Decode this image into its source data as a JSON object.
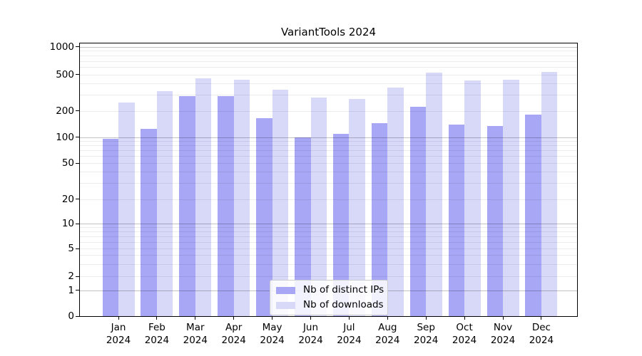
{
  "title": "VariantTools 2024",
  "chart_data": {
    "type": "bar",
    "title": "VariantTools 2024",
    "categories": [
      "Jan 2024",
      "Feb 2024",
      "Mar 2024",
      "Apr 2024",
      "May 2024",
      "Jun 2024",
      "Jul 2024",
      "Aug 2024",
      "Sep 2024",
      "Oct 2024",
      "Nov 2024",
      "Dec 2024"
    ],
    "series": [
      {
        "name": "Nb of distinct IPs",
        "color": "#a7a7f6",
        "values": [
          95,
          125,
          288,
          290,
          165,
          99,
          109,
          145,
          220,
          140,
          135,
          180
        ]
      },
      {
        "name": "Nb of downloads",
        "color": "#d8d8f9",
        "values": [
          248,
          325,
          450,
          435,
          340,
          280,
          270,
          360,
          520,
          430,
          435,
          535
        ]
      }
    ],
    "yscale": "log-with-zero",
    "ylim": [
      0,
      1000
    ],
    "y_ticks": [
      1000,
      500,
      200,
      100,
      50,
      20,
      10,
      5,
      2,
      1,
      0
    ],
    "xlabel": "",
    "ylabel": "",
    "grid": true,
    "legend_position": "lower center"
  }
}
